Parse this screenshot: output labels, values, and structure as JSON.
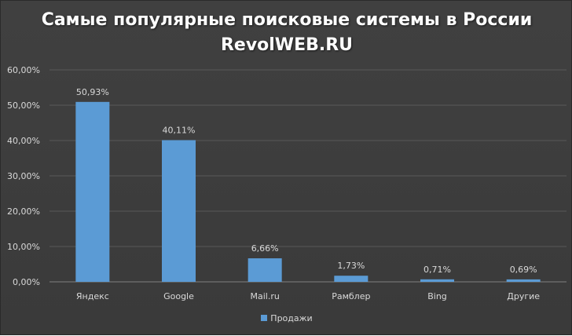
{
  "chart_data": {
    "type": "bar",
    "title": "Самые популярные поисковые системы в России",
    "subtitle": "RevolWEB.RU",
    "categories": [
      "Яндекс",
      "Google",
      "Mail.ru",
      "Рамблер",
      "Bing",
      "Другие"
    ],
    "series": [
      {
        "name": "Продажи",
        "values": [
          50.93,
          40.11,
          6.66,
          1.73,
          0.71,
          0.69
        ],
        "labels": [
          "50,93%",
          "40,11%",
          "6,66%",
          "1,73%",
          "0,71%",
          "0,69%"
        ]
      }
    ],
    "yticks": [
      "0,00%",
      "10,00%",
      "20,00%",
      "30,00%",
      "40,00%",
      "50,00%",
      "60,00%"
    ],
    "ylim": [
      0,
      60
    ],
    "grid": true,
    "legend_position": "bottom",
    "colors": {
      "bar": "#5b9bd5",
      "grid": "#595959",
      "background": "#404040"
    }
  }
}
